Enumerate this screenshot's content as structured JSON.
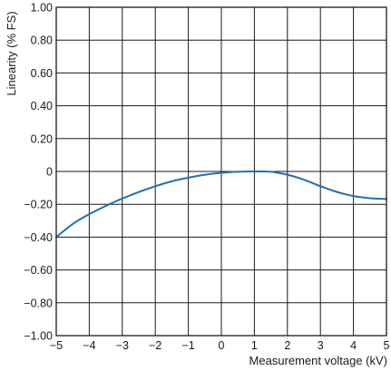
{
  "chart_data": {
    "type": "line",
    "title": "",
    "xlabel": "Measurement voltage (kV)",
    "ylabel": "Linearity (% FS)",
    "xlim": [
      -5,
      5
    ],
    "ylim": [
      -1.0,
      1.0
    ],
    "grid": true,
    "x_ticks": [
      -5,
      -4,
      -3,
      -2,
      -1,
      0,
      1,
      2,
      3,
      4,
      5
    ],
    "x_tick_labels": [
      "−5",
      "−4",
      "−3",
      "−2",
      "−1",
      "0",
      "1",
      "2",
      "3",
      "4",
      "5"
    ],
    "y_ticks": [
      1.0,
      0.8,
      0.6,
      0.4,
      0.2,
      0,
      -0.2,
      -0.4,
      -0.6,
      -0.8,
      -1.0
    ],
    "y_tick_labels": [
      "1.00",
      "0.80",
      "0.60",
      "0.40",
      "0.20",
      "0",
      "−0.20",
      "−0.40",
      "−0.60",
      "−0.80",
      "−1.00"
    ],
    "series": [
      {
        "color": "#1f6fb2",
        "x": [
          -5,
          -4.5,
          -4,
          -3.5,
          -3,
          -2.5,
          -2,
          -1.5,
          -1,
          -0.5,
          0,
          0.5,
          1,
          1.5,
          2,
          2.5,
          3,
          3.5,
          4,
          4.5,
          5
        ],
        "y": [
          -0.4,
          -0.32,
          -0.26,
          -0.21,
          -0.165,
          -0.125,
          -0.09,
          -0.06,
          -0.038,
          -0.02,
          -0.008,
          -0.002,
          0.0,
          -0.002,
          -0.02,
          -0.05,
          -0.09,
          -0.125,
          -0.15,
          -0.163,
          -0.168
        ]
      }
    ]
  }
}
